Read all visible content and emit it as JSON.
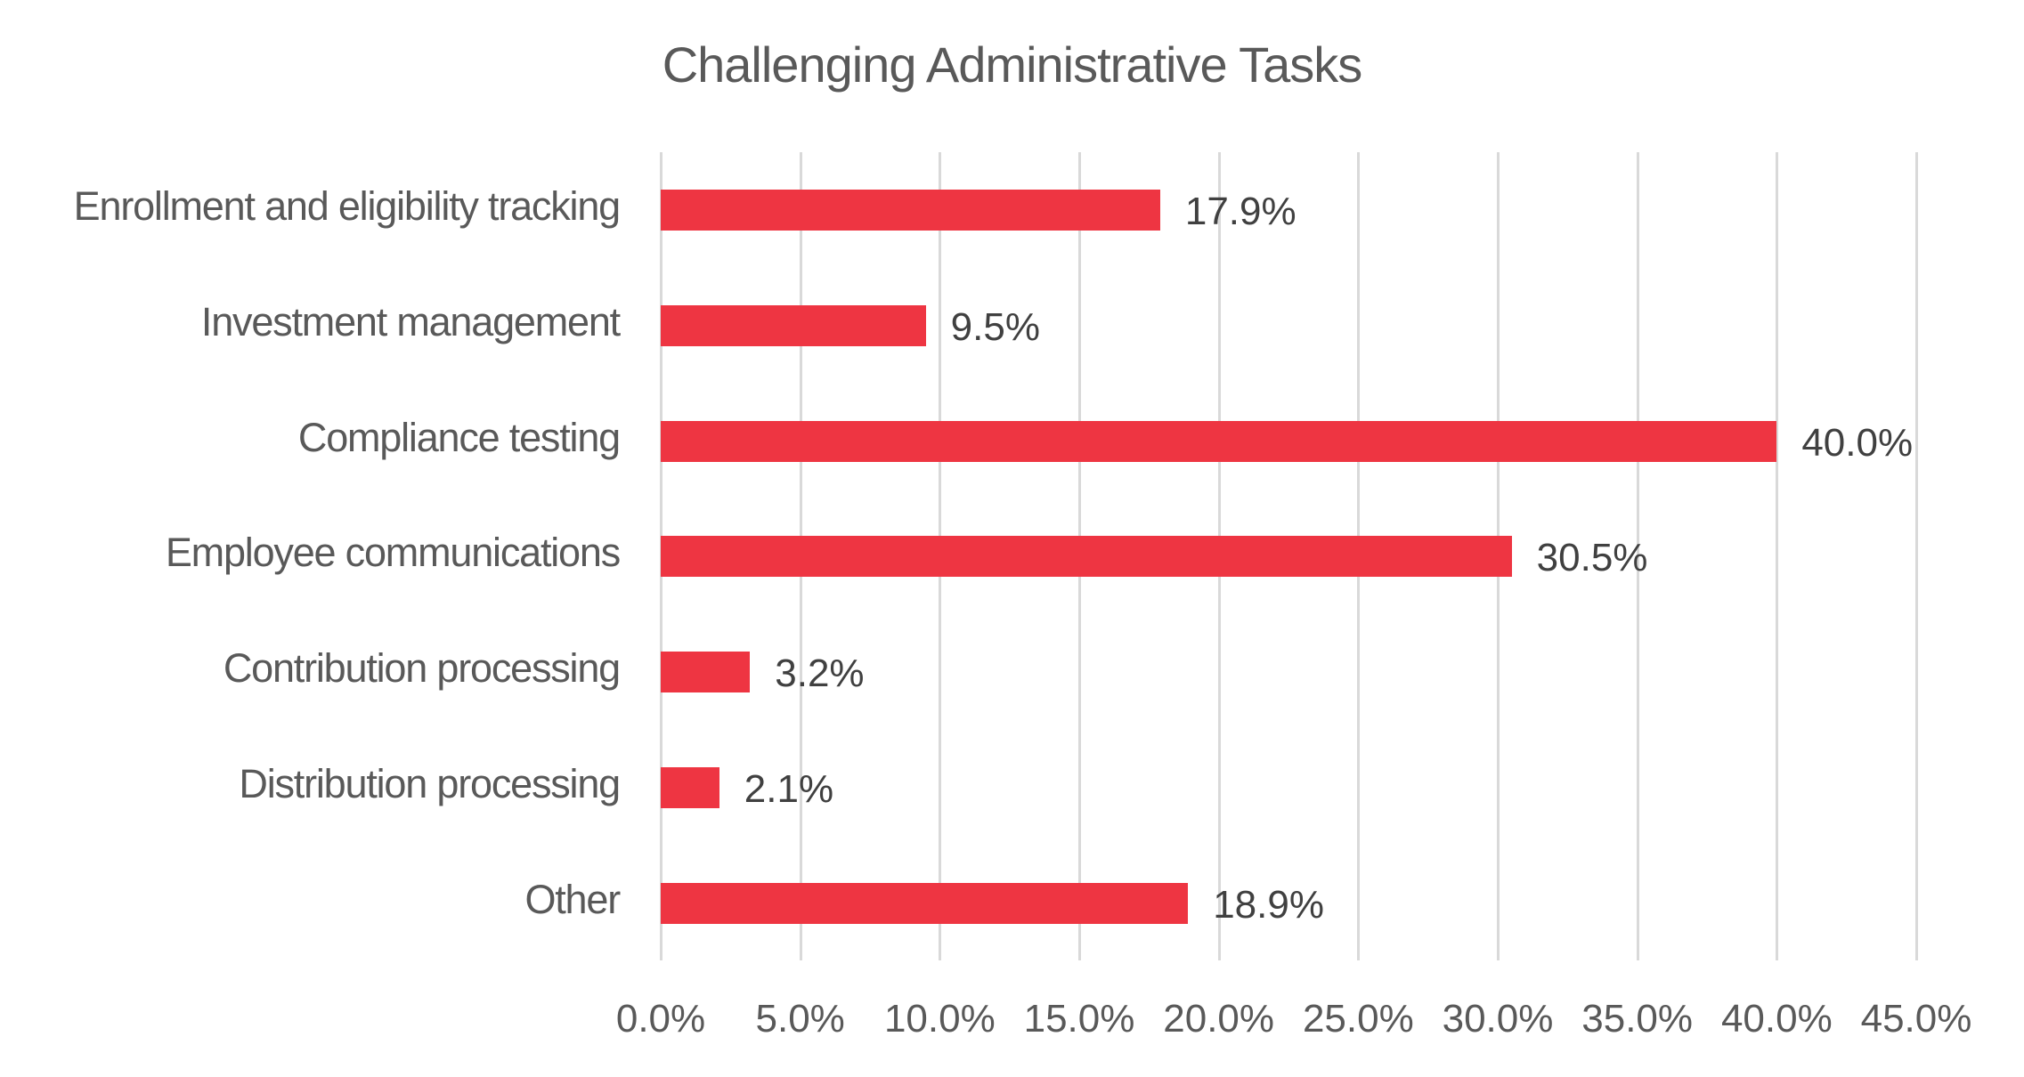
{
  "chart_data": {
    "type": "bar",
    "orientation": "horizontal",
    "title": "Challenging Administrative Tasks",
    "xlabel": "",
    "ylabel": "",
    "categories": [
      "Enrollment and eligibility tracking",
      "Investment management",
      "Compliance testing",
      "Employee communications",
      "Contribution processing",
      "Distribution processing",
      "Other"
    ],
    "values": [
      17.9,
      9.5,
      40.0,
      30.5,
      3.2,
      2.1,
      18.9
    ],
    "value_labels": [
      "17.9%",
      "9.5%",
      "40.0%",
      "30.5%",
      "3.2%",
      "2.1%",
      "18.9%"
    ],
    "xlim": [
      0,
      45
    ],
    "x_ticks": [
      "0.0%",
      "5.0%",
      "10.0%",
      "15.0%",
      "20.0%",
      "25.0%",
      "30.0%",
      "35.0%",
      "40.0%",
      "45.0%"
    ],
    "grid": "vertical",
    "legend": "none",
    "bar_color": "#EE3542"
  },
  "title": "Challenging Administrative Tasks",
  "colors": {
    "bar": "#EE3542",
    "gridline": "#D9D9D9",
    "text": "#595959",
    "value_text": "#404040"
  }
}
